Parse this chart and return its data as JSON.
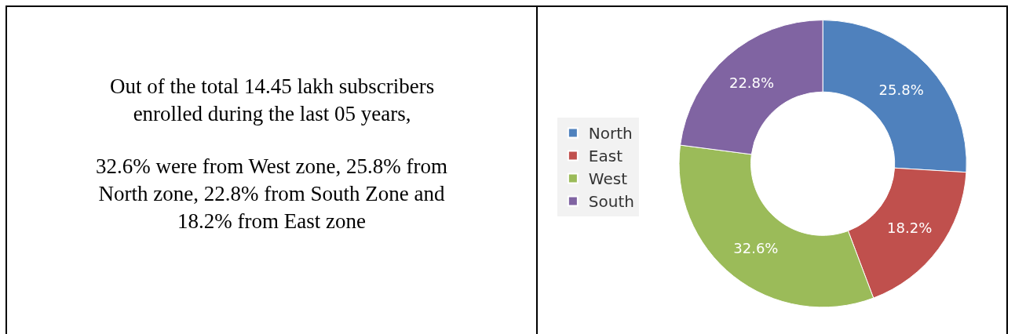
{
  "chart_data": [
    {
      "type": "other",
      "annotations": [
        "Out of the total 14.45 lakh subscribers\nenrolled during the last 05 years,",
        "32.6% were from West zone, 25.8% from\nNorth zone, 22.8% from South Zone and\n18.2% from East zone"
      ]
    },
    {
      "type": "donut",
      "categories": [
        "North",
        "East",
        "West",
        "South"
      ],
      "values": [
        25.8,
        18.2,
        32.6,
        22.8
      ],
      "value_labels": [
        "25.8%",
        "18.2%",
        "32.6%",
        "22.8%"
      ],
      "colors": [
        "#4f81bd",
        "#c0504d",
        "#9bbb59",
        "#8064a2"
      ],
      "legend": "left"
    }
  ]
}
